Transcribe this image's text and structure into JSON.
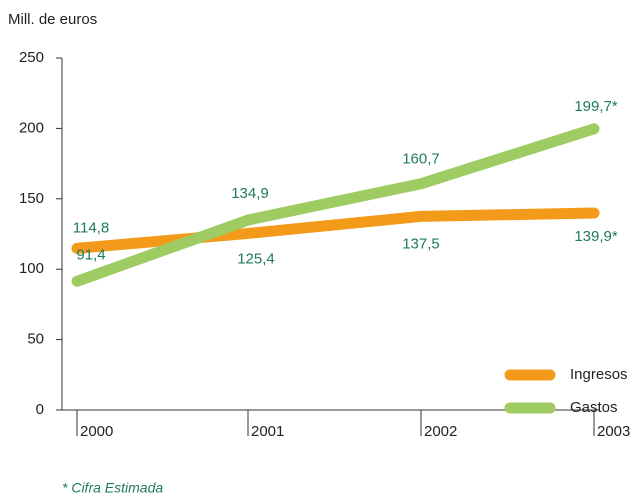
{
  "chart_data": {
    "type": "line",
    "y_label": "Mill. de euros",
    "categories": [
      "2000",
      "2001",
      "2002",
      "2003"
    ],
    "series": [
      {
        "name": "Ingresos",
        "color": "#f39a1a",
        "values": [
          114.8,
          125.4,
          137.5,
          139.9
        ],
        "value_labels": [
          "114,8",
          "125,4",
          "137,5",
          "139,9*"
        ]
      },
      {
        "name": "Gastos",
        "color": "#9fcc62",
        "values": [
          91.4,
          134.9,
          160.7,
          199.7
        ],
        "value_labels": [
          "91,4",
          "134,9",
          "160,7",
          "199,7*"
        ]
      }
    ],
    "ylim": [
      0,
      250
    ],
    "yticks": [
      0,
      50,
      100,
      150,
      200,
      250
    ],
    "grid": false,
    "legend": "lower right",
    "note": "* Cifra Estimada"
  }
}
